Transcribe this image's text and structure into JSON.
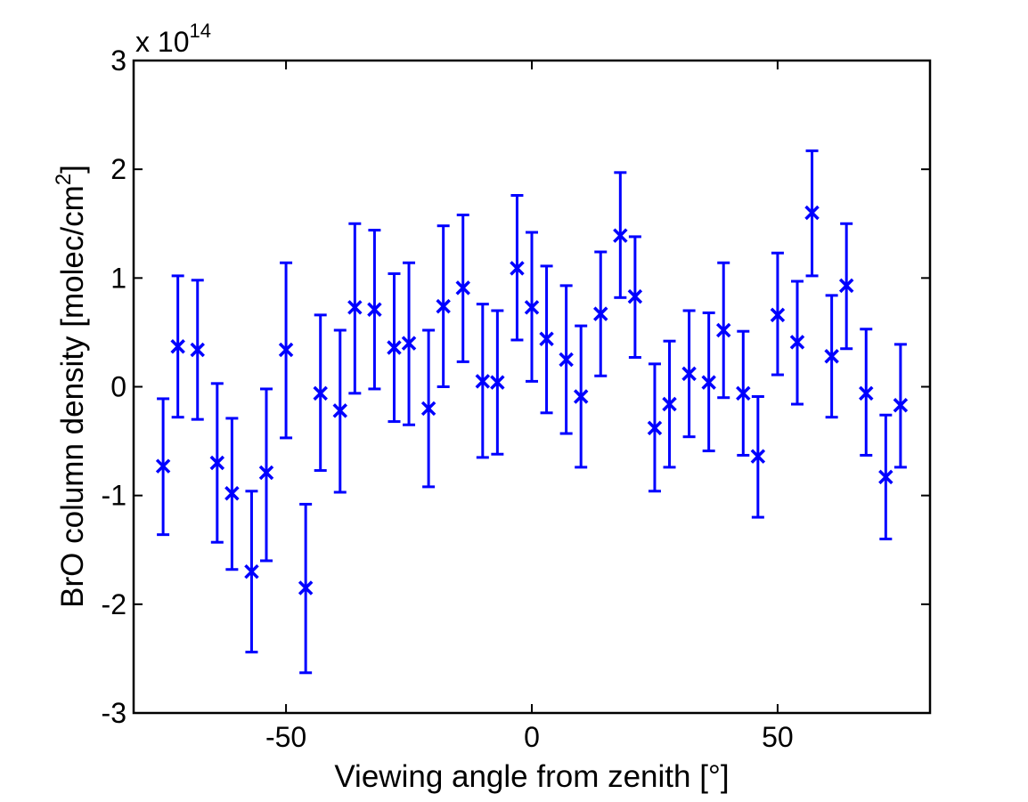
{
  "chart_data": {
    "type": "scatter",
    "xlabel": "Viewing angle from zenith [°]",
    "ylabel_main": "BrO column density [molec/cm",
    "ylabel_sup": "2",
    "ylabel_end": "]",
    "y_multiplier_base": "x 10",
    "y_multiplier_exp": "14",
    "xlim": [
      -81,
      81
    ],
    "ylim": [
      -3,
      3
    ],
    "xticks": [
      -50,
      0,
      50
    ],
    "xtick_labels": [
      "-50",
      "0",
      "50"
    ],
    "yticks": [
      -3,
      -2,
      -1,
      0,
      1,
      2,
      3
    ],
    "ytick_labels": [
      "-3",
      "-2",
      "-1",
      "0",
      "1",
      "2",
      "3"
    ],
    "grid": false,
    "color": "#0000ff",
    "marker": "x",
    "points": [
      {
        "x": -75,
        "y": -0.73,
        "lo": -1.36,
        "hi": -0.11
      },
      {
        "x": -72,
        "y": 0.37,
        "lo": -0.28,
        "hi": 1.02
      },
      {
        "x": -68,
        "y": 0.34,
        "lo": -0.3,
        "hi": 0.98
      },
      {
        "x": -64,
        "y": -0.7,
        "lo": -1.43,
        "hi": 0.03
      },
      {
        "x": -61,
        "y": -0.98,
        "lo": -1.68,
        "hi": -0.29
      },
      {
        "x": -57,
        "y": -1.7,
        "lo": -2.44,
        "hi": -0.96
      },
      {
        "x": -54,
        "y": -0.79,
        "lo": -1.6,
        "hi": -0.02
      },
      {
        "x": -50,
        "y": 0.34,
        "lo": -0.47,
        "hi": 1.14
      },
      {
        "x": -46,
        "y": -1.85,
        "lo": -2.63,
        "hi": -1.08
      },
      {
        "x": -43,
        "y": -0.06,
        "lo": -0.77,
        "hi": 0.66
      },
      {
        "x": -39,
        "y": -0.22,
        "lo": -0.97,
        "hi": 0.52
      },
      {
        "x": -36,
        "y": 0.73,
        "lo": -0.06,
        "hi": 1.5
      },
      {
        "x": -32,
        "y": 0.71,
        "lo": -0.02,
        "hi": 1.44
      },
      {
        "x": -28,
        "y": 0.36,
        "lo": -0.32,
        "hi": 1.04
      },
      {
        "x": -25,
        "y": 0.4,
        "lo": -0.35,
        "hi": 1.14
      },
      {
        "x": -21,
        "y": -0.2,
        "lo": -0.92,
        "hi": 0.52
      },
      {
        "x": -18,
        "y": 0.74,
        "lo": 0.0,
        "hi": 1.48
      },
      {
        "x": -14,
        "y": 0.91,
        "lo": 0.23,
        "hi": 1.58
      },
      {
        "x": -10,
        "y": 0.05,
        "lo": -0.65,
        "hi": 0.76
      },
      {
        "x": -7,
        "y": 0.04,
        "lo": -0.62,
        "hi": 0.7
      },
      {
        "x": -3,
        "y": 1.09,
        "lo": 0.43,
        "hi": 1.76
      },
      {
        "x": 0,
        "y": 0.73,
        "lo": 0.05,
        "hi": 1.42
      },
      {
        "x": 3,
        "y": 0.44,
        "lo": -0.24,
        "hi": 1.11
      },
      {
        "x": 7,
        "y": 0.25,
        "lo": -0.43,
        "hi": 0.93
      },
      {
        "x": 10,
        "y": -0.09,
        "lo": -0.74,
        "hi": 0.56
      },
      {
        "x": 14,
        "y": 0.67,
        "lo": 0.1,
        "hi": 1.24
      },
      {
        "x": 18,
        "y": 1.39,
        "lo": 0.82,
        "hi": 1.97
      },
      {
        "x": 21,
        "y": 0.83,
        "lo": 0.27,
        "hi": 1.38
      },
      {
        "x": 25,
        "y": -0.38,
        "lo": -0.96,
        "hi": 0.21
      },
      {
        "x": 28,
        "y": -0.16,
        "lo": -0.74,
        "hi": 0.42
      },
      {
        "x": 32,
        "y": 0.12,
        "lo": -0.46,
        "hi": 0.7
      },
      {
        "x": 36,
        "y": 0.04,
        "lo": -0.59,
        "hi": 0.68
      },
      {
        "x": 39,
        "y": 0.52,
        "lo": -0.1,
        "hi": 1.14
      },
      {
        "x": 43,
        "y": -0.06,
        "lo": -0.63,
        "hi": 0.51
      },
      {
        "x": 46,
        "y": -0.64,
        "lo": -1.2,
        "hi": -0.09
      },
      {
        "x": 50,
        "y": 0.66,
        "lo": 0.11,
        "hi": 1.23
      },
      {
        "x": 54,
        "y": 0.41,
        "lo": -0.16,
        "hi": 0.97
      },
      {
        "x": 57,
        "y": 1.6,
        "lo": 1.02,
        "hi": 2.17
      },
      {
        "x": 61,
        "y": 0.28,
        "lo": -0.28,
        "hi": 0.84
      },
      {
        "x": 64,
        "y": 0.93,
        "lo": 0.35,
        "hi": 1.5
      },
      {
        "x": 68,
        "y": -0.06,
        "lo": -0.63,
        "hi": 0.53
      },
      {
        "x": 72,
        "y": -0.83,
        "lo": -1.4,
        "hi": -0.26
      },
      {
        "x": 75,
        "y": -0.17,
        "lo": -0.74,
        "hi": 0.39
      }
    ]
  }
}
